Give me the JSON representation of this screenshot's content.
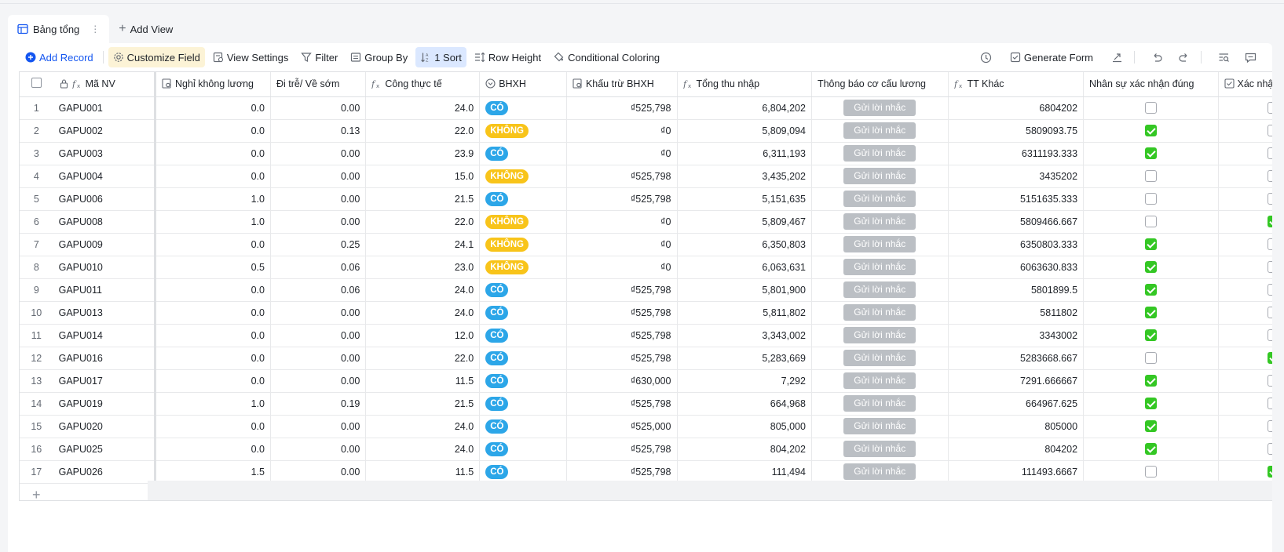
{
  "tabs": [
    {
      "label": "Bảng tổng"
    }
  ],
  "add_view_label": "Add View",
  "toolbar": {
    "add_record": "Add Record",
    "customize_field": "Customize Field",
    "view_settings": "View Settings",
    "filter": "Filter",
    "group_by": "Group By",
    "sort": "1 Sort",
    "row_height": "Row Height",
    "conditional_coloring": "Conditional Coloring",
    "generate_form": "Generate Form"
  },
  "columns": [
    "Mã NV",
    "Nghỉ không lương",
    "Đi trễ/ Về sớm",
    "Công thực tế",
    "BHXH",
    "Khấu trừ BHXH",
    "Tổng thu nhập",
    "Thông báo cơ cấu lương",
    "TT Khác",
    "Nhân sự xác nhận đúng",
    "Xác nhận sai"
  ],
  "remind_label": "Gửi lời nhắc",
  "rows": [
    {
      "idx": "1",
      "code": "GAPU001",
      "nghi": "0.0",
      "ditre": "0.00",
      "cong": "24.0",
      "bhxh": "CÓ",
      "khau": "₫525,798",
      "tong": "6,804,202",
      "tt": "6804202",
      "dung": false,
      "sai": false
    },
    {
      "idx": "2",
      "code": "GAPU002",
      "nghi": "0.0",
      "ditre": "0.13",
      "cong": "22.0",
      "bhxh": "KHÔNG",
      "khau": "₫0",
      "tong": "5,809,094",
      "tt": "5809093.75",
      "dung": true,
      "sai": false
    },
    {
      "idx": "3",
      "code": "GAPU003",
      "nghi": "0.0",
      "ditre": "0.00",
      "cong": "23.9",
      "bhxh": "CÓ",
      "khau": "₫0",
      "tong": "6,311,193",
      "tt": "6311193.333",
      "dung": true,
      "sai": false
    },
    {
      "idx": "4",
      "code": "GAPU004",
      "nghi": "0.0",
      "ditre": "0.00",
      "cong": "15.0",
      "bhxh": "KHÔNG",
      "khau": "₫525,798",
      "tong": "3,435,202",
      "tt": "3435202",
      "dung": false,
      "sai": false
    },
    {
      "idx": "5",
      "code": "GAPU006",
      "nghi": "1.0",
      "ditre": "0.00",
      "cong": "21.5",
      "bhxh": "CÓ",
      "khau": "₫525,798",
      "tong": "5,151,635",
      "tt": "5151635.333",
      "dung": false,
      "sai": false
    },
    {
      "idx": "6",
      "code": "GAPU008",
      "nghi": "1.0",
      "ditre": "0.00",
      "cong": "22.0",
      "bhxh": "KHÔNG",
      "khau": "₫0",
      "tong": "5,809,467",
      "tt": "5809466.667",
      "dung": false,
      "sai": true
    },
    {
      "idx": "7",
      "code": "GAPU009",
      "nghi": "0.0",
      "ditre": "0.25",
      "cong": "24.1",
      "bhxh": "KHÔNG",
      "khau": "₫0",
      "tong": "6,350,803",
      "tt": "6350803.333",
      "dung": true,
      "sai": false
    },
    {
      "idx": "8",
      "code": "GAPU010",
      "nghi": "0.5",
      "ditre": "0.06",
      "cong": "23.0",
      "bhxh": "KHÔNG",
      "khau": "₫0",
      "tong": "6,063,631",
      "tt": "6063630.833",
      "dung": true,
      "sai": false
    },
    {
      "idx": "9",
      "code": "GAPU011",
      "nghi": "0.0",
      "ditre": "0.06",
      "cong": "24.0",
      "bhxh": "CÓ",
      "khau": "₫525,798",
      "tong": "5,801,900",
      "tt": "5801899.5",
      "dung": true,
      "sai": false
    },
    {
      "idx": "10",
      "code": "GAPU013",
      "nghi": "0.0",
      "ditre": "0.00",
      "cong": "24.0",
      "bhxh": "CÓ",
      "khau": "₫525,798",
      "tong": "5,811,802",
      "tt": "5811802",
      "dung": true,
      "sai": false
    },
    {
      "idx": "11",
      "code": "GAPU014",
      "nghi": "0.0",
      "ditre": "0.00",
      "cong": "12.0",
      "bhxh": "CÓ",
      "khau": "₫525,798",
      "tong": "3,343,002",
      "tt": "3343002",
      "dung": true,
      "sai": false
    },
    {
      "idx": "12",
      "code": "GAPU016",
      "nghi": "0.0",
      "ditre": "0.00",
      "cong": "22.0",
      "bhxh": "CÓ",
      "khau": "₫525,798",
      "tong": "5,283,669",
      "tt": "5283668.667",
      "dung": false,
      "sai": true
    },
    {
      "idx": "13",
      "code": "GAPU017",
      "nghi": "0.0",
      "ditre": "0.00",
      "cong": "11.5",
      "bhxh": "CÓ",
      "khau": "₫630,000",
      "tong": "7,292",
      "tt": "7291.666667",
      "dung": true,
      "sai": false
    },
    {
      "idx": "14",
      "code": "GAPU019",
      "nghi": "1.0",
      "ditre": "0.19",
      "cong": "21.5",
      "bhxh": "CÓ",
      "khau": "₫525,798",
      "tong": "664,968",
      "tt": "664967.625",
      "dung": true,
      "sai": false
    },
    {
      "idx": "15",
      "code": "GAPU020",
      "nghi": "0.0",
      "ditre": "0.00",
      "cong": "24.0",
      "bhxh": "CÓ",
      "khau": "₫525,000",
      "tong": "805,000",
      "tt": "805000",
      "dung": true,
      "sai": false
    },
    {
      "idx": "16",
      "code": "GAPU025",
      "nghi": "0.0",
      "ditre": "0.00",
      "cong": "24.0",
      "bhxh": "CÓ",
      "khau": "₫525,798",
      "tong": "804,202",
      "tt": "804202",
      "dung": true,
      "sai": false
    },
    {
      "idx": "17",
      "code": "GAPU026",
      "nghi": "1.5",
      "ditre": "0.00",
      "cong": "11.5",
      "bhxh": "CÓ",
      "khau": "₫525,798",
      "tong": "111,494",
      "tt": "111493.6667",
      "dung": false,
      "sai": true
    }
  ],
  "colors": {
    "accent": "#1456f0",
    "tag_co": "#2ca6e8",
    "tag_khong": "#f8c41a",
    "check_on": "#34c724",
    "remind_bg": "#bbbfc4"
  }
}
